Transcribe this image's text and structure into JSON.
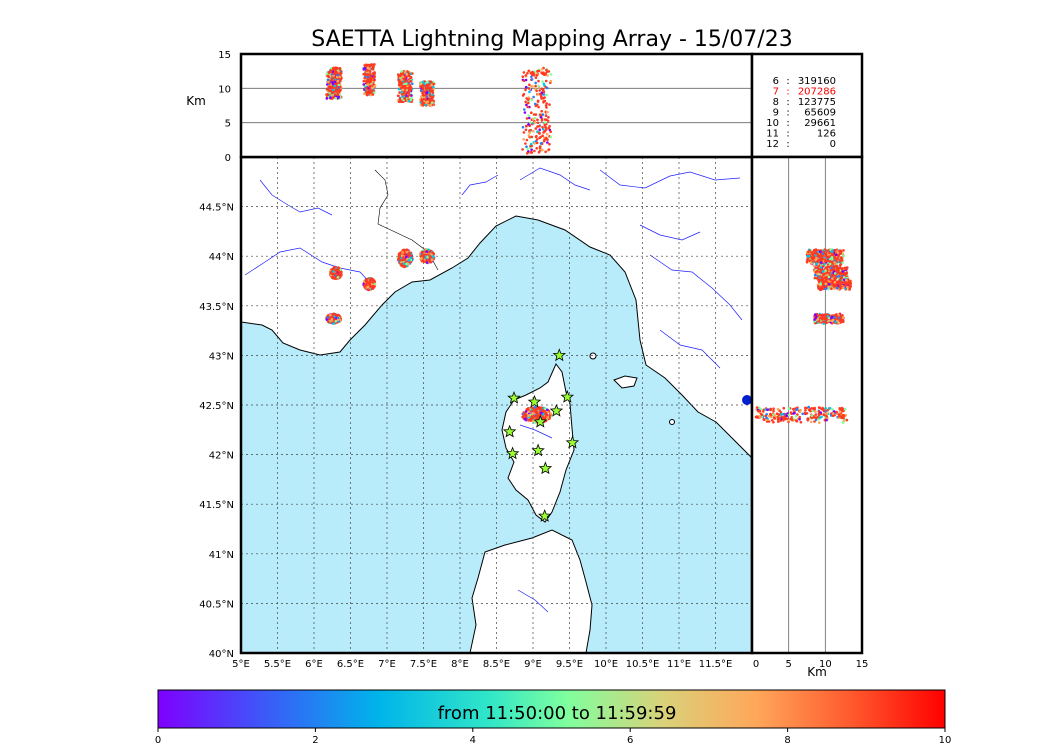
{
  "chart_data": {
    "type": "scatter",
    "title": "SAETTA Lightning Mapping Array - 15/07/23",
    "map": {
      "xlim": [
        5,
        12
      ],
      "ylim": [
        40,
        45
      ],
      "xticks": [
        5,
        5.5,
        6,
        6.5,
        7,
        7.5,
        8,
        8.5,
        9,
        9.5,
        10,
        10.5,
        11,
        11.5
      ],
      "xtick_labels": [
        "5°E",
        "5.5°E",
        "6°E",
        "6.5°E",
        "7°E",
        "7.5°E",
        "8°E",
        "8.5°E",
        "9°E",
        "9.5°E",
        "10°E",
        "10.5°E",
        "11°E",
        "11.5°E"
      ],
      "yticks": [
        40,
        40.5,
        41,
        41.5,
        42,
        42.5,
        43,
        43.5,
        44,
        44.5
      ],
      "ytick_labels": [
        "40°N",
        "40.5°N",
        "41°N",
        "41.5°N",
        "42°N",
        "42.5°N",
        "43°N",
        "43.5°N",
        "44°N",
        "44.5°N"
      ],
      "grid": true,
      "sea_color": "#b9ecfa",
      "land_color": "#ffffff"
    },
    "altitude_panel": {
      "ylabel": "Km",
      "ylim": [
        0,
        15
      ],
      "yticks": [
        0,
        5,
        10,
        15
      ]
    },
    "side_panel": {
      "xlabel": "Km",
      "xlim": [
        0,
        15
      ],
      "xticks": [
        0,
        5,
        10,
        15
      ]
    },
    "station_counts": [
      {
        "stations": "6",
        "count": "319160",
        "highlight": false
      },
      {
        "stations": "7",
        "count": "207286",
        "highlight": true
      },
      {
        "stations": "8",
        "count": "123775",
        "highlight": false
      },
      {
        "stations": "9",
        "count": "65609",
        "highlight": false
      },
      {
        "stations": "10",
        "count": "29661",
        "highlight": false
      },
      {
        "stations": "11",
        "count": "126",
        "highlight": false
      },
      {
        "stations": "12",
        "count": "0",
        "highlight": false
      }
    ],
    "stations": [
      {
        "lon": 9.36,
        "lat": 43.0
      },
      {
        "lon": 8.74,
        "lat": 42.57
      },
      {
        "lon": 9.02,
        "lat": 42.53
      },
      {
        "lon": 9.47,
        "lat": 42.58
      },
      {
        "lon": 9.32,
        "lat": 42.44
      },
      {
        "lon": 9.1,
        "lat": 42.33
      },
      {
        "lon": 8.68,
        "lat": 42.23
      },
      {
        "lon": 9.54,
        "lat": 42.12
      },
      {
        "lon": 8.72,
        "lat": 42.01
      },
      {
        "lon": 9.07,
        "lat": 42.04
      },
      {
        "lon": 9.17,
        "lat": 41.86
      },
      {
        "lon": 9.16,
        "lat": 41.38
      }
    ],
    "station_color": "#99ff33",
    "clusters": [
      {
        "lon": 7.25,
        "lat": 43.98,
        "rlon": 0.1,
        "rlat": 0.09,
        "alt": [
          8,
          12.5
        ]
      },
      {
        "lon": 7.55,
        "lat": 44.0,
        "rlon": 0.1,
        "rlat": 0.07,
        "alt": [
          7.5,
          11
        ]
      },
      {
        "lon": 6.3,
        "lat": 43.83,
        "rlon": 0.08,
        "rlat": 0.06,
        "alt": [
          8.5,
          13
        ]
      },
      {
        "lon": 6.76,
        "lat": 43.72,
        "rlon": 0.08,
        "rlat": 0.06,
        "alt": [
          9,
          13.5
        ]
      },
      {
        "lon": 6.27,
        "lat": 43.37,
        "rlon": 0.1,
        "rlat": 0.05,
        "alt": [
          8.5,
          12.5
        ]
      },
      {
        "lon": 9.05,
        "lat": 42.4,
        "rlon": 0.2,
        "rlat": 0.08,
        "alt": [
          0.5,
          13
        ]
      }
    ],
    "colorbar": {
      "label": "from 11:50:00 to 11:59:59",
      "range": [
        0,
        10
      ],
      "ticks": [
        0,
        2,
        4,
        6,
        8,
        10
      ],
      "colors": [
        "#7f00ff",
        "#2b7ff6",
        "#00c8e6",
        "#80ff9e",
        "#d9d27a",
        "#ffa75a",
        "#ff3a20",
        "#ff0000"
      ]
    }
  }
}
